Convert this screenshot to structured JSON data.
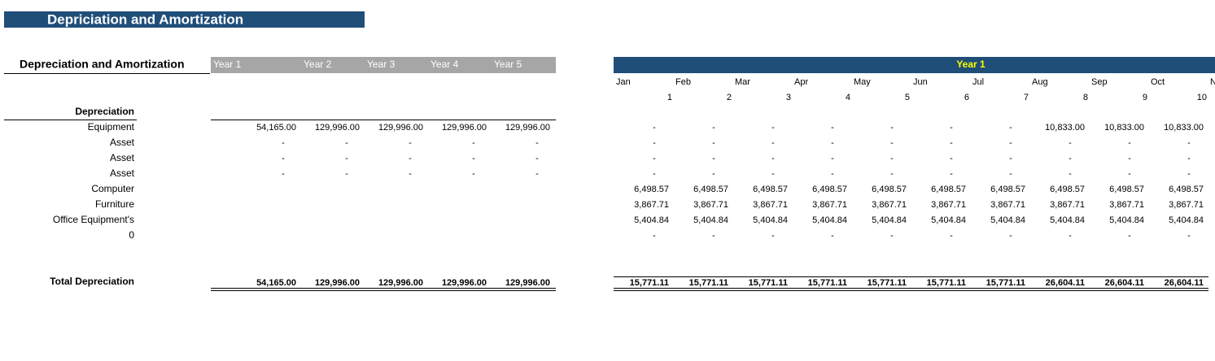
{
  "title": "Depriciation and Amortization",
  "summary": {
    "heading": "Depreciation and Amortization",
    "columns": [
      "Year 1",
      "Year 2",
      "Year 3",
      "Year 4",
      "Year 5"
    ],
    "section": "Depreciation",
    "rows": [
      {
        "label": "Equipment",
        "values": [
          "54,165.00",
          "129,996.00",
          "129,996.00",
          "129,996.00",
          "129,996.00"
        ]
      },
      {
        "label": "Asset",
        "values": [
          "-",
          "-",
          "-",
          "-",
          "-"
        ]
      },
      {
        "label": "Asset",
        "values": [
          "-",
          "-",
          "-",
          "-",
          "-"
        ]
      },
      {
        "label": "Asset",
        "values": [
          "-",
          "-",
          "-",
          "-",
          "-"
        ]
      },
      {
        "label": "Computer",
        "values": []
      },
      {
        "label": "Furniture",
        "values": []
      },
      {
        "label": "Office Equipment's",
        "values": []
      },
      {
        "label": "0",
        "values": []
      }
    ],
    "total": {
      "label": "Total Depreciation",
      "values": [
        "54,165.00",
        "129,996.00",
        "129,996.00",
        "129,996.00",
        "129,996.00"
      ]
    }
  },
  "monthly": {
    "heading": "Year 1",
    "months": [
      "Jan",
      "Feb",
      "Mar",
      "Apr",
      "May",
      "Jun",
      "Jul",
      "Aug",
      "Sep",
      "Oct",
      "N"
    ],
    "periods": [
      1,
      2,
      3,
      4,
      5,
      6,
      7,
      8,
      9,
      10
    ],
    "rows": [
      {
        "values": [
          "-",
          "-",
          "-",
          "-",
          "-",
          "-",
          "-",
          "10,833.00",
          "10,833.00",
          "10,833.00"
        ]
      },
      {
        "values": [
          "-",
          "-",
          "-",
          "-",
          "-",
          "-",
          "-",
          "-",
          "-",
          "-"
        ]
      },
      {
        "values": [
          "-",
          "-",
          "-",
          "-",
          "-",
          "-",
          "-",
          "-",
          "-",
          "-"
        ]
      },
      {
        "values": [
          "-",
          "-",
          "-",
          "-",
          "-",
          "-",
          "-",
          "-",
          "-",
          "-"
        ]
      },
      {
        "values": [
          "6,498.57",
          "6,498.57",
          "6,498.57",
          "6,498.57",
          "6,498.57",
          "6,498.57",
          "6,498.57",
          "6,498.57",
          "6,498.57",
          "6,498.57"
        ]
      },
      {
        "values": [
          "3,867.71",
          "3,867.71",
          "3,867.71",
          "3,867.71",
          "3,867.71",
          "3,867.71",
          "3,867.71",
          "3,867.71",
          "3,867.71",
          "3,867.71"
        ]
      },
      {
        "values": [
          "5,404.84",
          "5,404.84",
          "5,404.84",
          "5,404.84",
          "5,404.84",
          "5,404.84",
          "5,404.84",
          "5,404.84",
          "5,404.84",
          "5,404.84"
        ]
      },
      {
        "values": [
          "-",
          "-",
          "-",
          "-",
          "-",
          "-",
          "-",
          "-",
          "-",
          "-"
        ]
      }
    ],
    "total": {
      "values": [
        "15,771.11",
        "15,771.11",
        "15,771.11",
        "15,771.11",
        "15,771.11",
        "15,771.11",
        "15,771.11",
        "26,604.11",
        "26,604.11",
        "26,604.11"
      ]
    }
  }
}
